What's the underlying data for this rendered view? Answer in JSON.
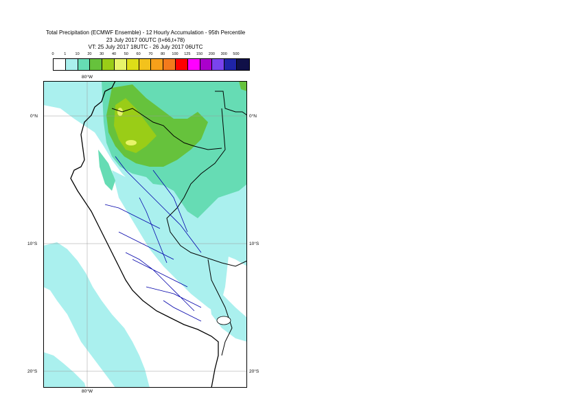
{
  "title": {
    "line1": "Total Precipitation (ECMWF Ensemble) - 12 Hourly Accumulation - 95th Percentile",
    "line2": "23 July 2017 00UTC (t+66,t+78)",
    "line3": "VT: 25 July 2017 18UTC - 26 July 2017 06UTC"
  },
  "legend": {
    "levels": [
      "0",
      "1",
      "10",
      "20",
      "30",
      "40",
      "50",
      "60",
      "70",
      "80",
      "100",
      "125",
      "150",
      "200",
      "300",
      "500"
    ],
    "colors": [
      "#ffffff",
      "#aaf0ee",
      "#66dcb4",
      "#66c23c",
      "#9acd17",
      "#e8f46a",
      "#dede18",
      "#f3c21c",
      "#f7a01a",
      "#f47a1c",
      "#ff0000",
      "#ff00ff",
      "#aa00cc",
      "#7a44ee",
      "#1f24a8",
      "#101048"
    ]
  },
  "map": {
    "lon_labels": {
      "top": "80°W",
      "bottom": "80°W"
    },
    "lat_labels": [
      {
        "label": "0°N"
      },
      {
        "label": "10°S"
      },
      {
        "label": "20°S"
      }
    ],
    "colors": {
      "sea_background": "#aaf0ee",
      "precip_heavy": "#66dcb4",
      "precip_green": "#66c23c",
      "precip_yellowgreen": "#9acd17",
      "precip_yellow": "#e8f46a",
      "country_border": "#000000",
      "region_border": "#0000aa",
      "grid": "#999999"
    }
  }
}
